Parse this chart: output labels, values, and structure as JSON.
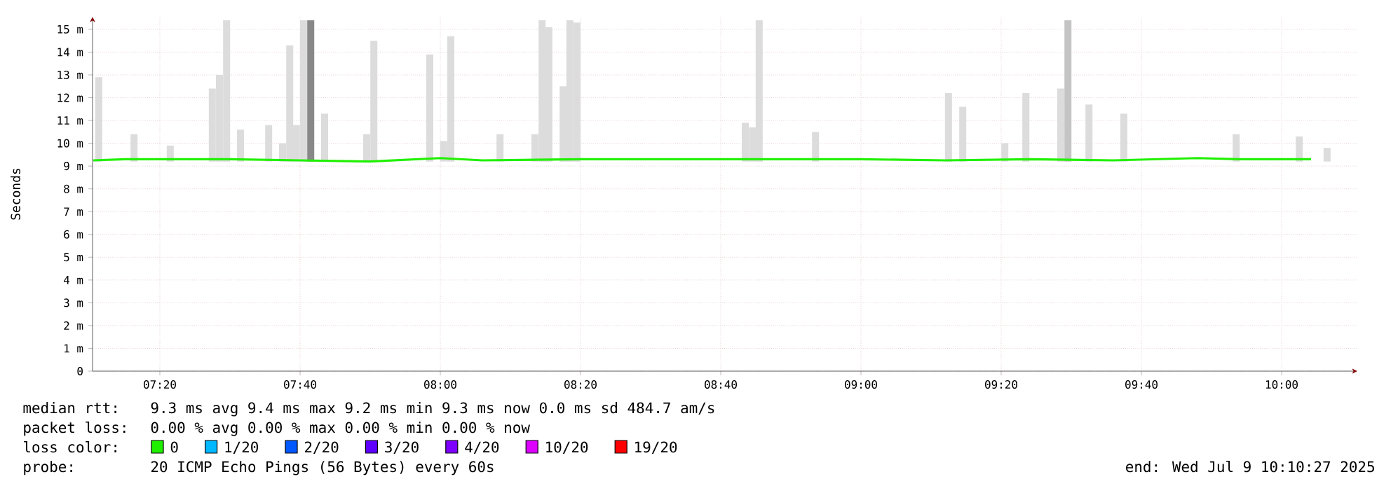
{
  "chart_data": {
    "type": "bar",
    "ylabel": "Seconds",
    "xlim": [
      7.1733,
      10.18
    ],
    "ylim": [
      0,
      15.55
    ],
    "xticks": [
      {
        "value": 7.3333,
        "label": "07:20"
      },
      {
        "value": 7.6667,
        "label": "07:40"
      },
      {
        "value": 8.0,
        "label": "08:00"
      },
      {
        "value": 8.3333,
        "label": "08:20"
      },
      {
        "value": 8.6667,
        "label": "08:40"
      },
      {
        "value": 9.0,
        "label": "09:00"
      },
      {
        "value": 9.3333,
        "label": "09:20"
      },
      {
        "value": 9.6667,
        "label": "09:40"
      },
      {
        "value": 10.0,
        "label": "10:00"
      }
    ],
    "yticks": [
      0,
      {
        "value": 1,
        "label": "1 m"
      },
      {
        "value": 2,
        "label": "2 m"
      },
      {
        "value": 3,
        "label": "3 m"
      },
      {
        "value": 4,
        "label": "4 m"
      },
      {
        "value": 5,
        "label": "5 m"
      },
      {
        "value": 6,
        "label": "6 m"
      },
      {
        "value": 7,
        "label": "7 m"
      },
      {
        "value": 8,
        "label": "8 m"
      },
      {
        "value": 9,
        "label": "9 m"
      },
      {
        "value": 10,
        "label": "10 m"
      },
      {
        "value": 11,
        "label": "11 m"
      },
      {
        "value": 12,
        "label": "12 m"
      },
      {
        "value": 13,
        "label": "13 m"
      },
      {
        "value": 14,
        "label": "14 m"
      },
      {
        "value": 15,
        "label": "15 m"
      }
    ],
    "grid": true,
    "legend": "bottom",
    "legend_title": "loss color:",
    "series": [
      {
        "color": "#dcdcdc",
        "x": [
          7.188,
          7.272,
          7.358,
          7.458,
          7.475,
          7.492,
          7.525,
          7.592,
          7.625,
          7.642,
          7.658,
          7.675,
          7.692,
          7.725,
          7.825,
          7.842,
          7.975,
          8.008,
          8.025,
          8.142,
          8.225,
          8.242,
          8.258,
          8.292,
          8.308,
          8.325,
          8.725,
          8.742,
          8.758,
          8.892,
          9.208,
          9.242,
          9.342,
          9.392,
          9.475,
          9.492,
          9.542,
          9.625,
          9.892,
          10.042,
          10.108
        ],
        "base": [
          9.2,
          9.2,
          9.2,
          9.2,
          9.2,
          9.2,
          9.2,
          9.2,
          9.2,
          9.2,
          9.2,
          9.2,
          9.2,
          9.2,
          9.2,
          9.2,
          9.2,
          9.2,
          9.2,
          9.2,
          9.2,
          9.2,
          9.2,
          9.2,
          9.2,
          9.2,
          9.2,
          9.2,
          9.2,
          9.2,
          9.2,
          9.2,
          9.2,
          9.2,
          9.2,
          9.2,
          9.2,
          9.2,
          9.2,
          9.2,
          9.2
        ],
        "values": [
          3.7,
          1.2,
          0.7,
          3.2,
          3.8,
          6.2,
          1.4,
          1.6,
          0.8,
          5.1,
          1.6,
          6.2,
          6.2,
          2.1,
          1.2,
          5.3,
          4.7,
          0.9,
          5.5,
          1.2,
          1.2,
          6.2,
          5.9,
          3.3,
          6.2,
          6.1,
          1.7,
          1.5,
          6.2,
          1.3,
          3.0,
          2.4,
          0.8,
          3.0,
          3.2,
          6.2,
          2.5,
          2.1,
          1.2,
          1.1,
          0.6
        ],
        "colors": [
          "#dcdcdc",
          "#dcdcdc",
          "#dcdcdc",
          "#dcdcdc",
          "#dcdcdc",
          "#dcdcdc",
          "#dcdcdc",
          "#dcdcdc",
          "#dcdcdc",
          "#dcdcdc",
          "#dcdcdc",
          "#dcdcdc",
          "#888888",
          "#dcdcdc",
          "#dcdcdc",
          "#dcdcdc",
          "#dcdcdc",
          "#dcdcdc",
          "#dcdcdc",
          "#dcdcdc",
          "#dcdcdc",
          "#dcdcdc",
          "#dcdcdc",
          "#dcdcdc",
          "#dcdcdc",
          "#dcdcdc",
          "#dcdcdc",
          "#dcdcdc",
          "#dcdcdc",
          "#dcdcdc",
          "#dcdcdc",
          "#dcdcdc",
          "#dcdcdc",
          "#dcdcdc",
          "#dcdcdc",
          "#c4c4c4",
          "#dcdcdc",
          "#dcdcdc",
          "#dcdcdc",
          "#dcdcdc",
          "#dcdcdc"
        ]
      },
      {
        "type": "line",
        "name": "0",
        "color": "#20f000",
        "x": [
          7.175,
          7.25,
          7.333,
          7.5,
          7.667,
          7.833,
          8.0,
          8.1,
          8.333,
          8.5,
          8.75,
          9.0,
          9.2,
          9.4,
          9.6,
          9.8,
          9.9,
          10.07
        ],
        "values": [
          9.25,
          9.3,
          9.3,
          9.3,
          9.25,
          9.2,
          9.35,
          9.25,
          9.3,
          9.3,
          9.3,
          9.3,
          9.25,
          9.3,
          9.25,
          9.35,
          9.3,
          9.3
        ]
      },
      {
        "type": "line",
        "name": "1/20",
        "color": "#00b8ff"
      },
      {
        "type": "line",
        "name": "2/20",
        "color": "#0059ff"
      },
      {
        "type": "line",
        "name": "3/20",
        "color": "#5e00ff"
      },
      {
        "type": "line",
        "name": "4/20",
        "color": "#7e00ff"
      },
      {
        "type": "line",
        "name": "10/20",
        "color": "#dd00ff"
      },
      {
        "type": "line",
        "name": "19/20",
        "color": "#ff0000"
      }
    ],
    "annotations": [
      "median rtt:",
      "9.3 ms avg  9.4 ms max  9.2 ms min  9.3 ms now  0.0 ms sd  484.7   am/s",
      "packet loss:",
      "0.00 % avg  0.00 % max  0.00 % min  0.00 % now",
      "probe:",
      "20 ICMP Echo Pings (56 Bytes) every 60s",
      "end: Wed Jul  9 10:10:27 2025"
    ]
  }
}
